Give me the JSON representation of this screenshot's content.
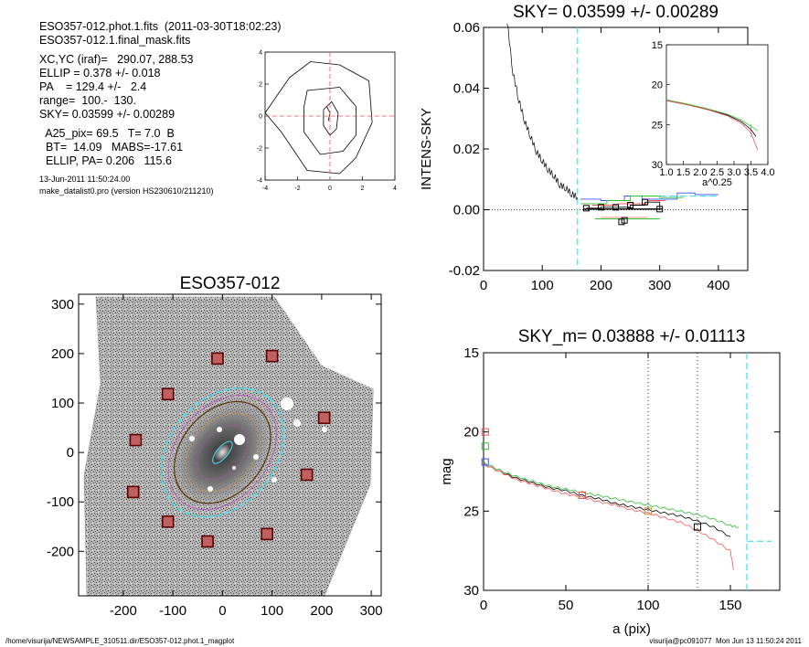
{
  "info": {
    "file_line": "ESO357-012.phot.1.fits  (2011-03-30T18:02:23)",
    "mask_line": "ESO357-012.1.final_mask.fits",
    "xcyc_line": "XC,YC (iraf)=   290.07, 288.53",
    "ellip_line": "ELLIP = 0.378 +/- 0.018",
    "pa_line": "PA    = 129.4 +/-   2.4",
    "range_line": "range=  100.-  130.",
    "sky_line": "SKY= 0.03599 +/- 0.00289",
    "a25_line": "  A25_pix= 69.5   T= 7.0  B",
    "bt_line": "  BT=  14.09   MABS=-17.61",
    "ellippa_line": "  ELLIP, PA= 0.206   115.6",
    "date_line": "13-Jun-2011 11:50:24.00",
    "prog_line": "make_datalist0.pro (version HS230610/211210)"
  },
  "footer": {
    "left": "/home/visurija/NEWSAMPLE_310511.dir/ESO357-012.phot.1_magplot",
    "right": "visurija@pc091077  Mon Jun 13 11:50:24 2011"
  },
  "chart_data": [
    {
      "type": "contour",
      "xlim": [
        -4,
        4
      ],
      "ylim": [
        -4,
        4
      ],
      "xticks": [
        -4,
        -2,
        0,
        2,
        4
      ],
      "yticks": [
        -4,
        -2,
        0,
        2,
        4
      ],
      "crosshair": [
        0,
        0
      ]
    },
    {
      "type": "line",
      "title": "SKY= 0.03599 +/- 0.00289",
      "ylabel": "INTENS-SKY",
      "xlim": [
        0,
        450
      ],
      "ylim": [
        -0.02,
        0.06
      ],
      "xticks": [
        0,
        100,
        200,
        300,
        400
      ],
      "yticks": [
        -0.02,
        0.0,
        0.02,
        0.04,
        0.06
      ],
      "ytick_labels": [
        "-0.02",
        "0.00",
        "0.02",
        "0.04",
        "0.06"
      ],
      "vline": 160,
      "sky_steps_squares": [
        [
          175,
          0.0005
        ],
        [
          200,
          0.0008
        ],
        [
          225,
          0.0008
        ],
        [
          250,
          0.0015
        ],
        [
          275,
          0.0025
        ],
        [
          300,
          0.0002
        ]
      ],
      "extra_squares": [
        [
          235,
          -0.004
        ],
        [
          240,
          -0.0035
        ]
      ],
      "profile": {
        "x": [
          40,
          50,
          60,
          70,
          80,
          90,
          100,
          110,
          120,
          130,
          140,
          150,
          160
        ],
        "y": [
          0.062,
          0.045,
          0.036,
          0.029,
          0.024,
          0.019,
          0.016,
          0.013,
          0.011,
          0.008,
          0.007,
          0.005,
          0.004
        ]
      },
      "inset": {
        "xlabel": "a^0.25",
        "xlim": [
          1.0,
          4.0
        ],
        "ylim": [
          30,
          15
        ],
        "xticks": [
          1.0,
          1.5,
          2.0,
          2.5,
          3.0,
          3.5,
          4.0
        ],
        "xtick_labels": [
          "1.0",
          "1.5",
          "2.0",
          "2.5",
          "3.0",
          "3.5",
          "4.0"
        ],
        "yticks": [
          15,
          20,
          25,
          30
        ]
      }
    },
    {
      "type": "image",
      "title": "ESO357-012",
      "xlim": [
        -290,
        320
      ],
      "ylim": [
        -290,
        320
      ],
      "xticks": [
        -200,
        -100,
        0,
        100,
        200,
        300
      ],
      "yticks": [
        -200,
        -100,
        0,
        100,
        200,
        300
      ],
      "sky_boxes": [
        [
          -10,
          190
        ],
        [
          100,
          195
        ],
        [
          -110,
          118
        ],
        [
          205,
          70
        ],
        [
          -175,
          25
        ],
        [
          170,
          -45
        ],
        [
          -180,
          -80
        ],
        [
          -110,
          -140
        ],
        [
          -30,
          -180
        ],
        [
          90,
          -165
        ]
      ]
    },
    {
      "type": "line",
      "title": "SKY_m=  0.03888 +/- 0.01113",
      "xlabel": "a (pix)",
      "ylabel": "mag",
      "xlim": [
        0,
        180
      ],
      "ylim": [
        30,
        15
      ],
      "xticks": [
        0,
        50,
        100,
        150
      ],
      "yticks": [
        15,
        20,
        25,
        30
      ],
      "vlines_dotted": [
        100,
        130
      ],
      "vline_cyan": 160,
      "sky_level_mag": 26.9,
      "series": [
        {
          "color": "#000000",
          "x": [
            0,
            10,
            20,
            30,
            40,
            50,
            60,
            70,
            80,
            90,
            100,
            110,
            120,
            130,
            140,
            150
          ],
          "y": [
            22.0,
            22.5,
            22.9,
            23.2,
            23.5,
            23.7,
            24.0,
            24.2,
            24.5,
            24.7,
            24.9,
            25.1,
            25.3,
            25.6,
            26.0,
            26.6
          ]
        },
        {
          "color": "#ff5050",
          "x": [
            0,
            10,
            20,
            30,
            40,
            50,
            60,
            70,
            80,
            90,
            100,
            110,
            120,
            130,
            140,
            150,
            152
          ],
          "y": [
            22.0,
            22.5,
            23.0,
            23.3,
            23.6,
            23.9,
            24.1,
            24.4,
            24.6,
            24.9,
            25.1,
            25.4,
            25.7,
            26.2,
            26.8,
            27.5,
            28.7
          ]
        },
        {
          "color": "#30c030",
          "x": [
            0,
            10,
            20,
            30,
            40,
            50,
            60,
            70,
            80,
            90,
            100,
            110,
            120,
            130,
            140,
            150,
            155
          ],
          "y": [
            21.9,
            22.4,
            22.8,
            23.1,
            23.4,
            23.6,
            23.8,
            24.0,
            24.2,
            24.4,
            24.6,
            24.8,
            25.0,
            25.2,
            25.5,
            25.9,
            26.0
          ]
        }
      ],
      "squares": [
        {
          "x": 1,
          "y": 20.0,
          "color": "#ff5050"
        },
        {
          "x": 1,
          "y": 20.9,
          "color": "#30c030"
        },
        {
          "x": 1,
          "y": 21.9,
          "color": "#3050ff"
        },
        {
          "x": 60,
          "y": 24.0,
          "color": "#ff5050"
        },
        {
          "x": 100,
          "y": 25.0,
          "color": "#d09030"
        },
        {
          "x": 130,
          "y": 26.0,
          "color": "#000000"
        }
      ]
    }
  ]
}
